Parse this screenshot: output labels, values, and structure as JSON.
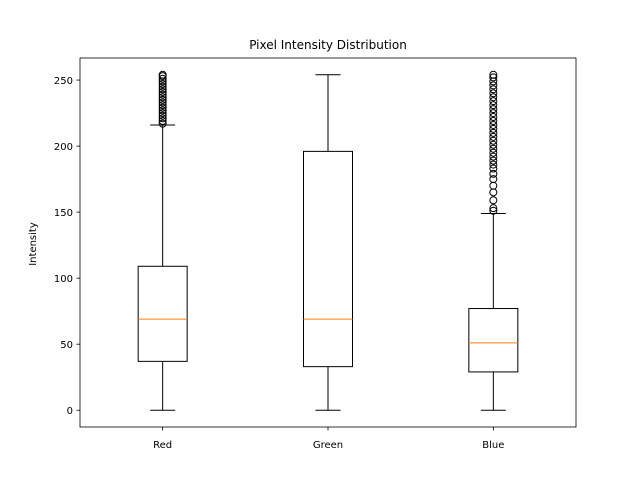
{
  "chart_data": {
    "type": "box",
    "title": "Pixel Intensity Distribution",
    "xlabel": "",
    "ylabel": "Intensity",
    "ylim": [
      -12.7,
      266.7
    ],
    "yticks": [
      0,
      50,
      100,
      150,
      200,
      250
    ],
    "grid": false,
    "categories": [
      "Red",
      "Green",
      "Blue"
    ],
    "boxes": [
      {
        "label": "Red",
        "whislo": 0,
        "q1": 37,
        "med": 69,
        "q3": 109,
        "whishi": 216,
        "outliers": [
          217,
          219,
          221,
          223,
          225,
          227,
          229,
          231,
          233,
          235,
          237,
          239,
          241,
          243,
          245,
          247,
          249,
          251,
          253,
          254
        ]
      },
      {
        "label": "Green",
        "whislo": 0,
        "q1": 33,
        "med": 69,
        "q3": 196,
        "whishi": 254,
        "outliers": []
      },
      {
        "label": "Blue",
        "whislo": 0,
        "q1": 29,
        "med": 51,
        "q3": 77,
        "whishi": 149,
        "outliers": [
          151,
          153,
          159,
          165,
          170,
          175,
          179,
          183,
          186,
          189,
          192,
          195,
          198,
          201,
          204,
          207,
          210,
          213,
          216,
          219,
          222,
          225,
          228,
          231,
          234,
          237,
          240,
          243,
          246,
          249,
          252,
          254
        ]
      }
    ],
    "colors": {
      "box": "#000000",
      "median": "#ff7f0e"
    }
  }
}
